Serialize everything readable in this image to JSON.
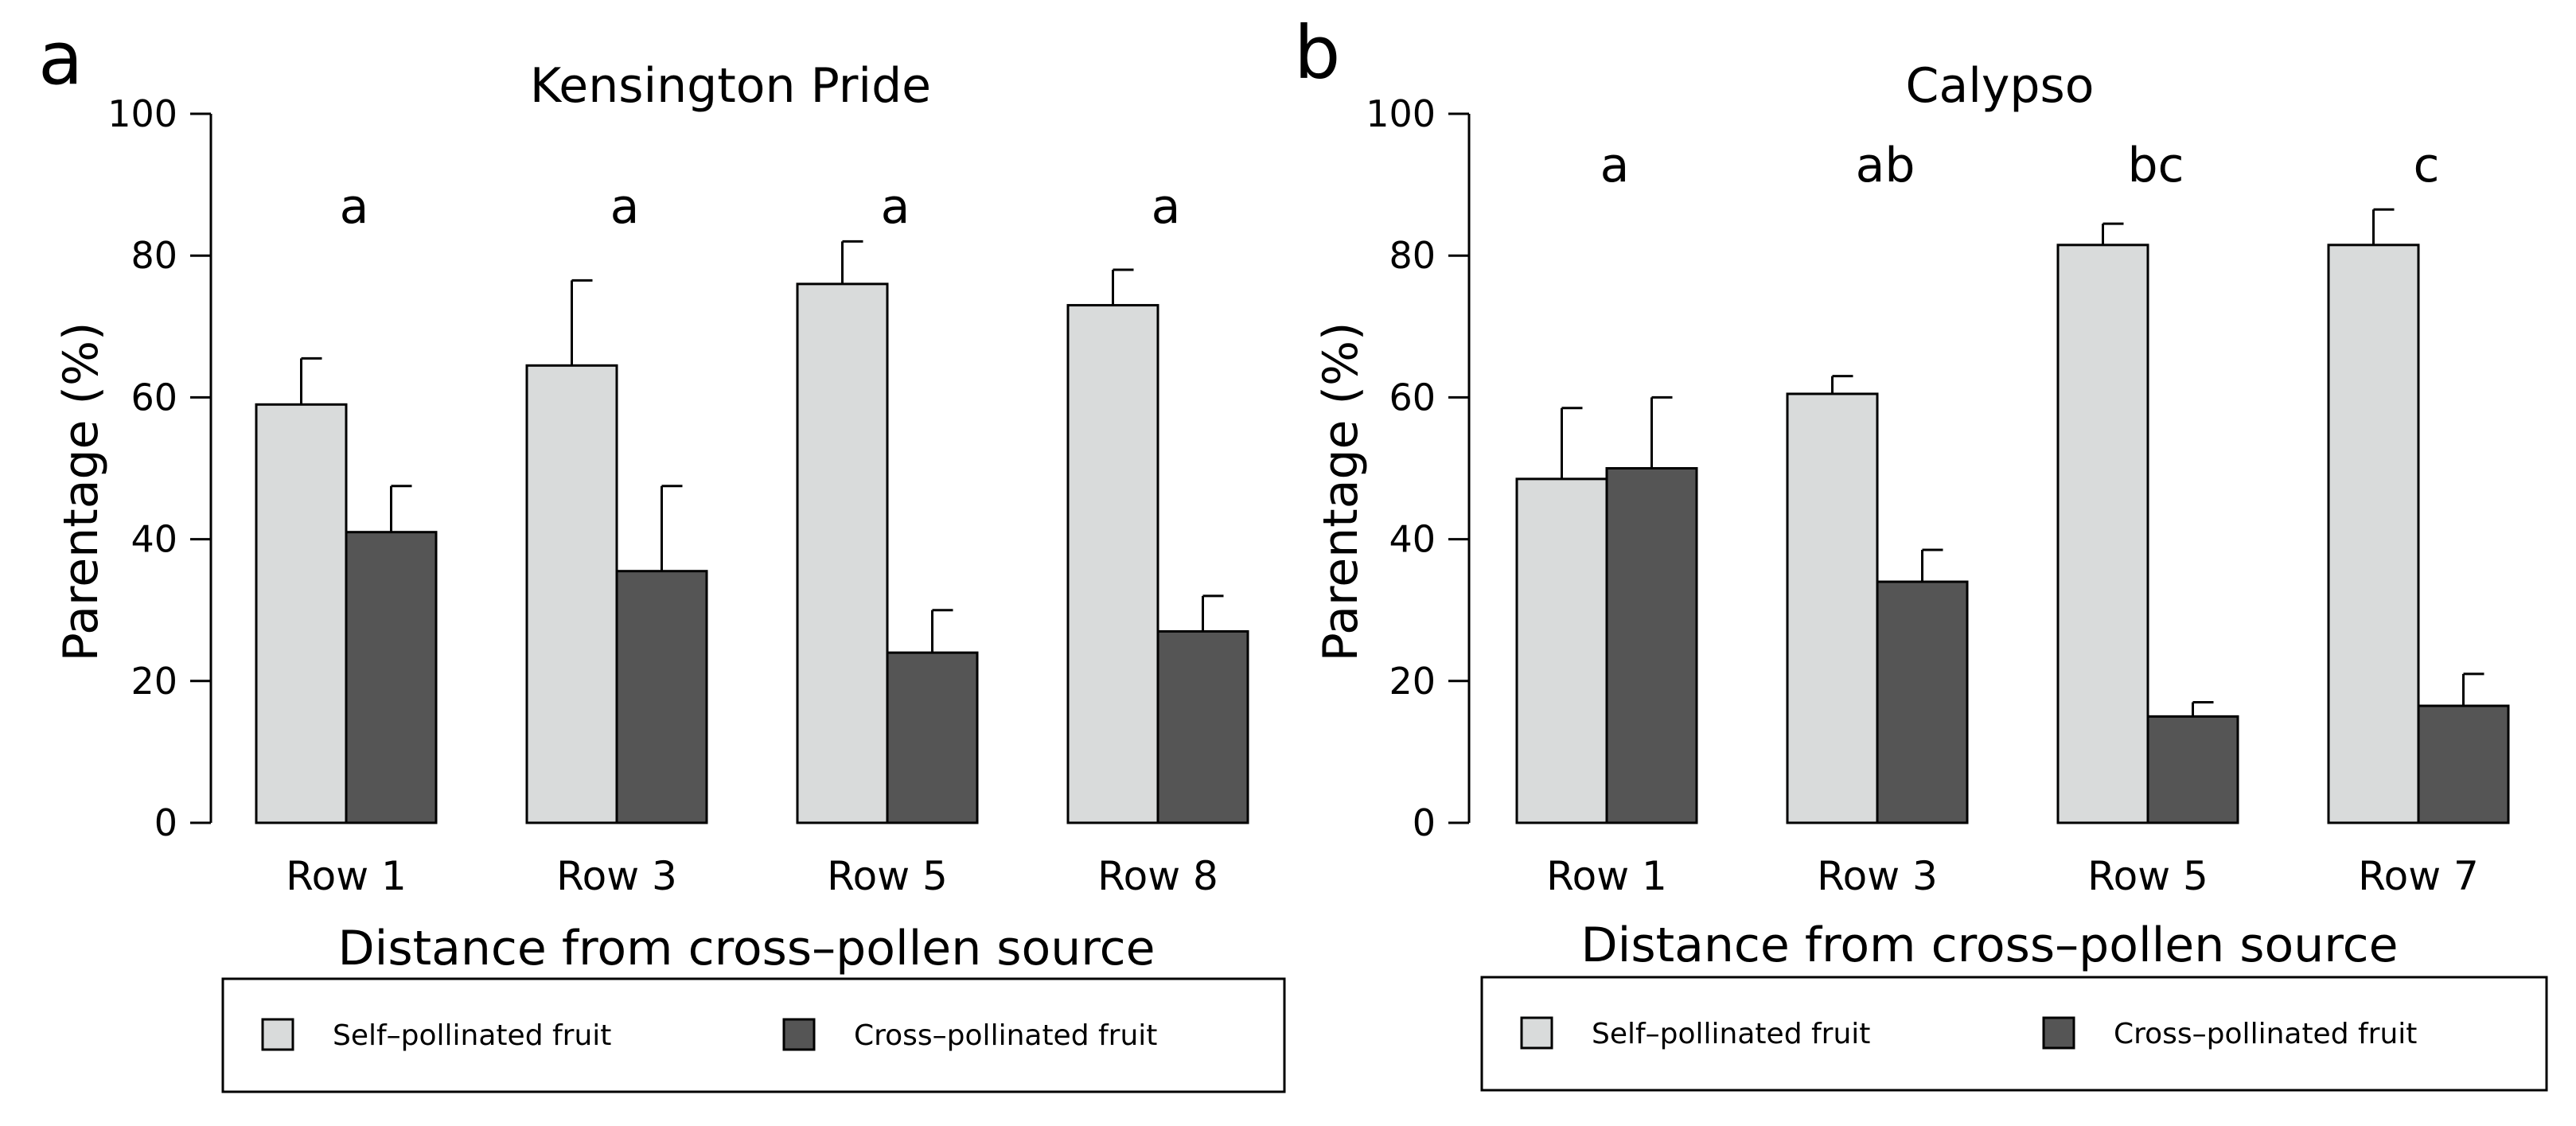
{
  "chart_data": [
    {
      "panel_label": "a",
      "type": "bar",
      "title": "Kensington Pride",
      "xlabel": "Distance from cross–pollen source",
      "ylabel": "Parentage (%)",
      "ylim": [
        0,
        100
      ],
      "yticks": [
        "0",
        "20",
        "40",
        "60",
        "80",
        "100"
      ],
      "categories": [
        "Row 1",
        "Row 3",
        "Row 5",
        "Row 8"
      ],
      "significance_letters": [
        "a",
        "a",
        "a",
        "a"
      ],
      "series": [
        {
          "name": "Self–pollinated fruit",
          "color": "#d9dbdb",
          "values": [
            59,
            64.5,
            76,
            73
          ],
          "errors": [
            6.5,
            12,
            6,
            5
          ]
        },
        {
          "name": "Cross–pollinated fruit",
          "color": "#555555",
          "values": [
            41,
            35.5,
            24,
            27
          ],
          "errors": [
            6.5,
            12,
            6,
            5
          ]
        }
      ],
      "legend": [
        "Self–pollinated fruit",
        "Cross–pollinated fruit"
      ]
    },
    {
      "panel_label": "b",
      "type": "bar",
      "title": "Calypso",
      "xlabel": "Distance from cross–pollen source",
      "ylabel": "Parentage (%)",
      "ylim": [
        0,
        100
      ],
      "yticks": [
        "0",
        "20",
        "40",
        "60",
        "80",
        "100"
      ],
      "categories": [
        "Row 1",
        "Row 3",
        "Row 5",
        "Row 7"
      ],
      "significance_letters": [
        "a",
        "ab",
        "bc",
        "c"
      ],
      "series": [
        {
          "name": "Self–pollinated fruit",
          "color": "#d9dbdb",
          "values": [
            48.5,
            60.5,
            81.5,
            81.5
          ],
          "errors": [
            10,
            2.5,
            3,
            5
          ]
        },
        {
          "name": "Cross–pollinated fruit",
          "color": "#555555",
          "values": [
            50,
            34,
            15,
            16.5
          ],
          "errors": [
            10,
            4.5,
            2,
            4.5
          ]
        }
      ],
      "legend": [
        "Self–pollinated fruit",
        "Cross–pollinated fruit"
      ]
    }
  ]
}
